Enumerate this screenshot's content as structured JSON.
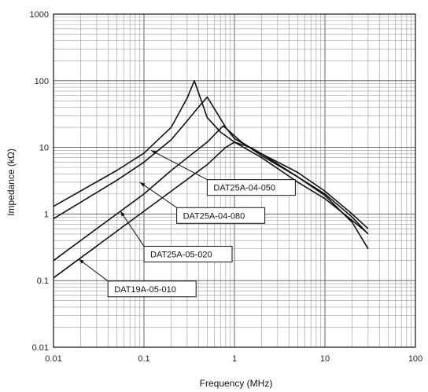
{
  "chart_data": {
    "type": "line",
    "title": "",
    "xlabel": "Frequency (MHz)",
    "ylabel": "Impedance (kΩ)",
    "x_scale": "log",
    "y_scale": "log",
    "xlim": [
      0.01,
      100
    ],
    "ylim": [
      0.01,
      1000
    ],
    "grid": true,
    "x_ticks": [
      {
        "value": 0.01,
        "label": "0.01"
      },
      {
        "value": 0.1,
        "label": "0.1"
      },
      {
        "value": 1,
        "label": "1"
      },
      {
        "value": 10,
        "label": "10"
      },
      {
        "value": 100,
        "label": "100"
      }
    ],
    "y_ticks": [
      {
        "value": 0.01,
        "label": "0.01"
      },
      {
        "value": 0.1,
        "label": "0.1"
      },
      {
        "value": 1,
        "label": "1"
      },
      {
        "value": 10,
        "label": "10"
      },
      {
        "value": 100,
        "label": "100"
      },
      {
        "value": 1000,
        "label": "1000"
      }
    ],
    "series": [
      {
        "name": "DAT25A-04-050",
        "points": [
          [
            0.01,
            1.3
          ],
          [
            0.05,
            4.5
          ],
          [
            0.1,
            8.2
          ],
          [
            0.2,
            20
          ],
          [
            0.3,
            55
          ],
          [
            0.36,
            100
          ],
          [
            0.42,
            55
          ],
          [
            0.5,
            28
          ],
          [
            0.7,
            17
          ],
          [
            1,
            12
          ],
          [
            2,
            7
          ],
          [
            5,
            3
          ],
          [
            10,
            1.7
          ],
          [
            20,
            0.8
          ],
          [
            28,
            0.55
          ]
        ]
      },
      {
        "name": "DAT25A-04-080",
        "points": [
          [
            0.01,
            0.85
          ],
          [
            0.05,
            3.2
          ],
          [
            0.1,
            6
          ],
          [
            0.2,
            13
          ],
          [
            0.3,
            25
          ],
          [
            0.4,
            40
          ],
          [
            0.5,
            57
          ],
          [
            0.6,
            38
          ],
          [
            0.8,
            20
          ],
          [
            1,
            13.5
          ],
          [
            2,
            8
          ],
          [
            5,
            4.2
          ],
          [
            10,
            2.2
          ],
          [
            20,
            1
          ],
          [
            30,
            0.6
          ]
        ]
      },
      {
        "name": "DAT25A-05-020",
        "points": [
          [
            0.01,
            0.2
          ],
          [
            0.02,
            0.4
          ],
          [
            0.05,
            1
          ],
          [
            0.1,
            2
          ],
          [
            0.2,
            4.5
          ],
          [
            0.5,
            12
          ],
          [
            0.75,
            21
          ],
          [
            0.9,
            17
          ],
          [
            1.2,
            12
          ],
          [
            2,
            7.5
          ],
          [
            5,
            3.6
          ],
          [
            10,
            2
          ],
          [
            20,
            0.9
          ],
          [
            30,
            0.5
          ]
        ]
      },
      {
        "name": "DAT19A-05-010",
        "points": [
          [
            0.01,
            0.11
          ],
          [
            0.02,
            0.22
          ],
          [
            0.05,
            0.55
          ],
          [
            0.1,
            1.1
          ],
          [
            0.2,
            2.2
          ],
          [
            0.5,
            5.5
          ],
          [
            0.8,
            10
          ],
          [
            1,
            12
          ],
          [
            1.5,
            10
          ],
          [
            2,
            8
          ],
          [
            5,
            3.6
          ],
          [
            10,
            1.9
          ],
          [
            20,
            0.75
          ],
          [
            30,
            0.3
          ]
        ]
      }
    ],
    "callouts": [
      {
        "label": "DAT25A-04-050",
        "anchor": [
          0.12,
          9
        ],
        "box_at": [
          0.5,
          2.5
        ]
      },
      {
        "label": "DAT25A-04-080",
        "anchor": [
          0.09,
          3.0
        ],
        "box_at": [
          0.23,
          0.95
        ]
      },
      {
        "label": "DAT25A-05-020",
        "anchor": [
          0.055,
          1.1
        ],
        "box_at": [
          0.1,
          0.25
        ]
      },
      {
        "label": "DAT19A-05-010",
        "anchor": [
          0.019,
          0.21
        ],
        "box_at": [
          0.04,
          0.075
        ]
      }
    ]
  }
}
